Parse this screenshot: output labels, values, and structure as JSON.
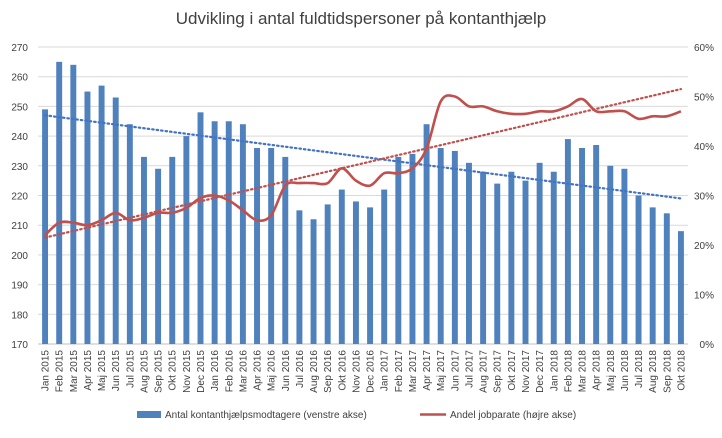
{
  "chart_data": {
    "type": "bar-line",
    "title": "Udvikling i antal fuldtidspersoner på kontanthjælp",
    "categories": [
      "Jan 2015",
      "Feb 2015",
      "Mar 2015",
      "Apr 2015",
      "Maj 2015",
      "Jun 2015",
      "Jul 2015",
      "Aug 2015",
      "Sep 2015",
      "Okt 2015",
      "Nov 2015",
      "Dec 2015",
      "Jan 2016",
      "Feb 2016",
      "Mar 2016",
      "Apr 2016",
      "Maj 2016",
      "Jun 2016",
      "Jul 2016",
      "Aug 2016",
      "Sep 2016",
      "Okt 2016",
      "Nov 2016",
      "Dec 2016",
      "Jan 2017",
      "Feb 2017",
      "Mar 2017",
      "Apr 2017",
      "Maj 2017",
      "Jun 2017",
      "Jul 2017",
      "Aug 2017",
      "Sep 2017",
      "Okt 2017",
      "Nov 2017",
      "Dec 2017",
      "Jan 2018",
      "Feb 2018",
      "Mar 2018",
      "Apr 2018",
      "Maj 2018",
      "Jun 2018",
      "Jul 2018",
      "Aug 2018",
      "Sep 2018",
      "Okt 2018"
    ],
    "series": [
      {
        "name": "Antal kontanthjælpsmodtagere (venstre akse)",
        "type": "bar",
        "axis": "left",
        "color": "#4f81bd",
        "values": [
          249,
          265,
          264,
          255,
          257,
          253,
          244,
          233,
          229,
          233,
          240,
          248,
          245,
          245,
          244,
          236,
          236,
          233,
          215,
          212,
          217,
          222,
          218,
          216,
          222,
          233,
          234,
          244,
          236,
          235,
          231,
          228,
          224,
          228,
          225,
          231,
          228,
          239,
          236,
          237,
          230,
          229,
          220,
          216,
          214,
          208
        ]
      },
      {
        "name": "Andel jobparate (højre akse)",
        "type": "line",
        "axis": "right",
        "color": "#c0504d",
        "values": [
          0.22,
          0.245,
          0.245,
          0.24,
          0.25,
          0.265,
          0.25,
          0.255,
          0.265,
          0.265,
          0.275,
          0.295,
          0.3,
          0.29,
          0.27,
          0.25,
          0.26,
          0.32,
          0.325,
          0.325,
          0.325,
          0.355,
          0.33,
          0.32,
          0.345,
          0.345,
          0.355,
          0.395,
          0.49,
          0.5,
          0.48,
          0.48,
          0.47,
          0.465,
          0.465,
          0.47,
          0.47,
          0.48,
          0.495,
          0.47,
          0.47,
          0.47,
          0.455,
          0.46,
          0.46,
          0.47
        ]
      }
    ],
    "trendlines": [
      {
        "series": "Antal kontanthjælpsmodtagere (venstre akse)",
        "axis": "left",
        "color": "#4472c4",
        "start": 247,
        "end": 219
      },
      {
        "series": "Andel jobparate (højre akse)",
        "axis": "right",
        "color": "#c0504d",
        "start": 0.215,
        "end": 0.515
      }
    ],
    "left_axis": {
      "ylim": [
        170,
        270
      ],
      "ticks": [
        170,
        180,
        190,
        200,
        210,
        220,
        230,
        240,
        250,
        260,
        270
      ]
    },
    "right_axis": {
      "ylim": [
        0,
        0.6
      ],
      "ticks": [
        "0%",
        "10%",
        "20%",
        "30%",
        "40%",
        "50%",
        "60%"
      ]
    },
    "grid": true,
    "legend_placement": "bottom"
  }
}
